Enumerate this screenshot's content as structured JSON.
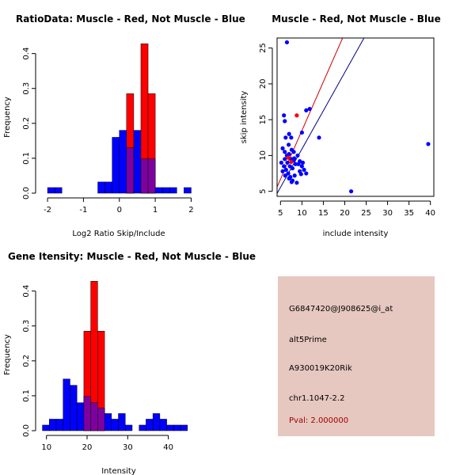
{
  "chart_data": [
    {
      "type": "bar",
      "subtype": "overlaid-histogram",
      "title": "RatioData: Muscle - Red, Not Muscle - Blue",
      "xlabel": "Log2 Ratio Skip/Include",
      "ylabel": "Frequency",
      "xlim": [
        -2.2,
        2.1
      ],
      "ylim": [
        0,
        0.44
      ],
      "xticks": [
        "-2",
        "-1",
        "0",
        "1",
        "2"
      ],
      "xtick_values": [
        -2,
        -1,
        0,
        1,
        2
      ],
      "yticks": [
        "0.0",
        "0.1",
        "0.2",
        "0.3",
        "0.4"
      ],
      "ytick_values": [
        0,
        0.1,
        0.2,
        0.3,
        0.4
      ],
      "bin_width": 0.2,
      "series": [
        {
          "name": "Not Muscle",
          "color": "#0000ff",
          "bins": [
            [
              -2.0,
              0.016
            ],
            [
              -1.8,
              0.016
            ],
            [
              -0.6,
              0.032
            ],
            [
              -0.4,
              0.032
            ],
            [
              -0.2,
              0.16
            ],
            [
              0.0,
              0.18
            ],
            [
              0.2,
              0.13
            ],
            [
              0.4,
              0.18
            ],
            [
              0.6,
              0.098
            ],
            [
              0.8,
              0.098
            ],
            [
              1.0,
              0.016
            ],
            [
              1.2,
              0.016
            ],
            [
              1.4,
              0.016
            ],
            [
              1.8,
              0.016
            ]
          ]
        },
        {
          "name": "Muscle",
          "color": "#ff0000",
          "bins": [
            [
              0.2,
              0.285
            ],
            [
              0.6,
              0.428
            ],
            [
              0.8,
              0.285
            ]
          ]
        }
      ],
      "overlap_color": "#7f00a0"
    },
    {
      "type": "scatter",
      "title": "Muscle - Red, Not Muscle - Blue",
      "xlabel": "include intensity",
      "ylabel": "skip intensity",
      "xlim": [
        4.2,
        40.8
      ],
      "ylim": [
        4.3,
        26.4
      ],
      "xticks": [
        "5",
        "10",
        "15",
        "20",
        "25",
        "30",
        "35",
        "40"
      ],
      "xtick_values": [
        5,
        10,
        15,
        20,
        25,
        30,
        35,
        40
      ],
      "yticks": [
        "5",
        "10",
        "15",
        "20",
        "25"
      ],
      "ytick_values": [
        5,
        10,
        15,
        20,
        25
      ],
      "lines": [
        {
          "name": "Muscle fit",
          "color": "#cc0000",
          "points": [
            [
              4.2,
              5.6
            ],
            [
              19.5,
              26.4
            ]
          ]
        },
        {
          "name": "Not Muscle fit",
          "color": "#000088",
          "points": [
            [
              4.2,
              4.7
            ],
            [
              24.5,
              26.4
            ]
          ]
        }
      ],
      "series": [
        {
          "name": "Not Muscle",
          "color": "#0000ff",
          "points": [
            [
              6.5,
              25.8
            ],
            [
              5.8,
              15.6
            ],
            [
              6.0,
              14.8
            ],
            [
              7.0,
              13.0
            ],
            [
              6.2,
              12.5
            ],
            [
              7.5,
              12.5
            ],
            [
              11.0,
              16.3
            ],
            [
              11.8,
              16.5
            ],
            [
              10.0,
              13.2
            ],
            [
              14.0,
              12.5
            ],
            [
              5.5,
              11.0
            ],
            [
              6.0,
              10.5
            ],
            [
              6.5,
              10.0
            ],
            [
              7.0,
              10.2
            ],
            [
              7.5,
              9.5
            ],
            [
              8.0,
              9.3
            ],
            [
              8.5,
              8.8
            ],
            [
              9.0,
              10.0
            ],
            [
              9.5,
              9.2
            ],
            [
              10.0,
              8.5
            ],
            [
              5.2,
              9.0
            ],
            [
              5.8,
              8.5
            ],
            [
              6.3,
              8.0
            ],
            [
              6.8,
              7.5
            ],
            [
              7.3,
              7.0
            ],
            [
              7.8,
              6.5
            ],
            [
              8.3,
              7.2
            ],
            [
              8.8,
              6.2
            ],
            [
              9.5,
              7.8
            ],
            [
              10.5,
              8.0
            ],
            [
              11.0,
              7.5
            ],
            [
              6.0,
              9.5
            ],
            [
              6.6,
              9.0
            ],
            [
              7.2,
              8.5
            ],
            [
              7.8,
              8.2
            ],
            [
              8.2,
              9.6
            ],
            [
              9.2,
              8.8
            ],
            [
              10.2,
              9.0
            ],
            [
              6.9,
              11.5
            ],
            [
              7.6,
              10.8
            ],
            [
              8.1,
              10.5
            ],
            [
              5.5,
              7.8
            ],
            [
              6.1,
              7.2
            ],
            [
              7.0,
              6.8
            ],
            [
              7.6,
              6.3
            ],
            [
              9.8,
              7.4
            ],
            [
              21.5,
              5.0
            ],
            [
              39.5,
              11.6
            ]
          ]
        },
        {
          "name": "Muscle",
          "color": "#ff0000",
          "points": [
            [
              8.8,
              15.6
            ],
            [
              6.8,
              9.7
            ],
            [
              7.5,
              9.1
            ]
          ]
        }
      ]
    },
    {
      "type": "bar",
      "subtype": "overlaid-histogram",
      "title": "Gene Itensity: Muscle - Red, Not Muscle - Blue",
      "xlabel": "Intensity",
      "ylabel": "Frequency",
      "xlim": [
        8.5,
        46.5
      ],
      "ylim": [
        0,
        0.44
      ],
      "xticks": [
        "10",
        "20",
        "30",
        "40"
      ],
      "xtick_values": [
        10,
        20,
        30,
        40
      ],
      "yticks": [
        "0.0",
        "0.1",
        "0.2",
        "0.3",
        "0.4"
      ],
      "ytick_values": [
        0,
        0.1,
        0.2,
        0.3,
        0.4
      ],
      "bin_width": 1.7,
      "series": [
        {
          "name": "Not Muscle",
          "color": "#0000ff",
          "bins": [
            [
              9.0,
              0.016
            ],
            [
              10.7,
              0.033
            ],
            [
              12.4,
              0.033
            ],
            [
              14.1,
              0.148
            ],
            [
              15.8,
              0.13
            ],
            [
              17.5,
              0.08
            ],
            [
              19.2,
              0.098
            ],
            [
              20.9,
              0.08
            ],
            [
              22.6,
              0.065
            ],
            [
              24.3,
              0.049
            ],
            [
              26.0,
              0.033
            ],
            [
              27.7,
              0.049
            ],
            [
              29.4,
              0.016
            ],
            [
              32.8,
              0.016
            ],
            [
              34.5,
              0.033
            ],
            [
              36.2,
              0.049
            ],
            [
              37.9,
              0.033
            ],
            [
              39.6,
              0.016
            ],
            [
              41.3,
              0.016
            ],
            [
              43.0,
              0.016
            ]
          ]
        },
        {
          "name": "Muscle",
          "color": "#ff0000",
          "bins": [
            [
              19.2,
              0.285
            ],
            [
              20.9,
              0.428
            ],
            [
              22.6,
              0.285
            ]
          ]
        }
      ],
      "overlap_color": "#7f00a0"
    }
  ],
  "info": {
    "probe_id": "G6847420@J908625@i_at",
    "event_type": "alt5Prime",
    "gene": "A930019K20Rik",
    "location": "chr1.1047-2.2",
    "pval": "Pval: 2.000000",
    "background_color": "#e6c8c0",
    "pval_color": "#a00000"
  }
}
